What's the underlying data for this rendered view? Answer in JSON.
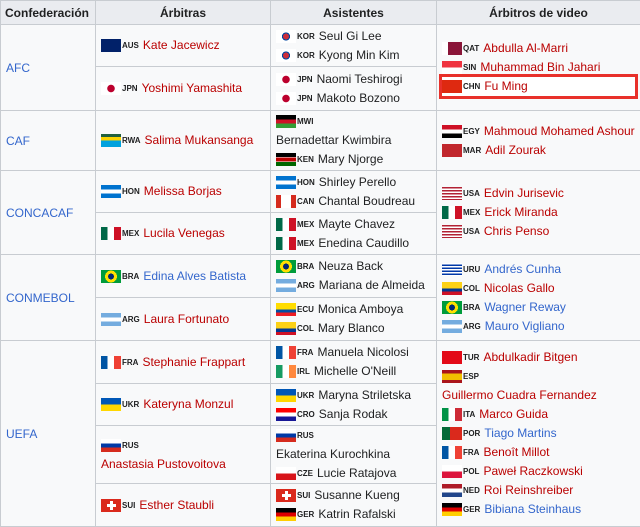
{
  "headers": [
    "Confederación",
    "Árbitras",
    "Asistentes",
    "Árbitros de video"
  ],
  "colors": {
    "red_link": "#ba0000",
    "blue_link": "#3366cc",
    "text": "#202122",
    "highlight": "#e8302a"
  },
  "confederations": [
    {
      "name": "AFC",
      "subrows": [
        {
          "referees": [
            {
              "code": "AUS",
              "name": "Kate Jacewicz",
              "link": "red"
            }
          ],
          "assistants": [
            {
              "code": "KOR",
              "name": "Seul Gi Lee"
            },
            {
              "code": "KOR",
              "name": "Kyong Min Kim"
            }
          ]
        },
        {
          "referees": [
            {
              "code": "JPN",
              "name": "Yoshimi Yamashita",
              "link": "red"
            }
          ],
          "assistants": [
            {
              "code": "JPN",
              "name": "Naomi Teshirogi"
            },
            {
              "code": "JPN",
              "name": "Makoto Bozono"
            }
          ]
        }
      ],
      "video": [
        {
          "code": "QAT",
          "name": "Abdulla Al-Marri",
          "link": "red"
        },
        {
          "code": "SIN",
          "name": "Muhammad Bin Jahari",
          "link": "red"
        },
        {
          "code": "CHN",
          "name": "Fu Ming",
          "link": "red",
          "highlighted": true
        }
      ]
    },
    {
      "name": "CAF",
      "subrows": [
        {
          "referees": [
            {
              "code": "RWA",
              "name": "Salima Mukansanga",
              "link": "red"
            }
          ],
          "assistants": [
            {
              "code": "MWI",
              "name": "Bernadettar Kwimbira"
            },
            {
              "code": "KEN",
              "name": "Mary Njorge"
            }
          ]
        }
      ],
      "video": [
        {
          "code": "EGY",
          "name": "Mahmoud Mohamed Ashour",
          "link": "red"
        },
        {
          "code": "MAR",
          "name": "Adil Zourak",
          "link": "red"
        }
      ]
    },
    {
      "name": "CONCACAF",
      "subrows": [
        {
          "referees": [
            {
              "code": "HON",
              "name": "Melissa Borjas",
              "link": "red"
            }
          ],
          "assistants": [
            {
              "code": "HON",
              "name": "Shirley Perello"
            },
            {
              "code": "CAN",
              "name": "Chantal Boudreau"
            }
          ]
        },
        {
          "referees": [
            {
              "code": "MEX",
              "name": "Lucila Venegas",
              "link": "red"
            }
          ],
          "assistants": [
            {
              "code": "MEX",
              "name": "Mayte Chavez"
            },
            {
              "code": "MEX",
              "name": "Enedina Caudillo"
            }
          ]
        }
      ],
      "video": [
        {
          "code": "USA",
          "name": "Edvin Jurisevic",
          "link": "red"
        },
        {
          "code": "MEX",
          "name": "Erick Miranda",
          "link": "red"
        },
        {
          "code": "USA",
          "name": "Chris Penso",
          "link": "red"
        }
      ]
    },
    {
      "name": "CONMEBOL",
      "subrows": [
        {
          "referees": [
            {
              "code": "BRA",
              "name": "Edina Alves Batista",
              "link": "blue"
            }
          ],
          "assistants": [
            {
              "code": "BRA",
              "name": "Neuza Back"
            },
            {
              "code": "ARG",
              "name": "Mariana de Almeida"
            }
          ]
        },
        {
          "referees": [
            {
              "code": "ARG",
              "name": "Laura Fortunato",
              "link": "red"
            }
          ],
          "assistants": [
            {
              "code": "ECU",
              "name": "Monica Amboya"
            },
            {
              "code": "COL",
              "name": "Mary Blanco"
            }
          ]
        }
      ],
      "video": [
        {
          "code": "URU",
          "name": "Andrés Cunha",
          "link": "blue"
        },
        {
          "code": "COL",
          "name": "Nicolas Gallo",
          "link": "red"
        },
        {
          "code": "BRA",
          "name": "Wagner Reway",
          "link": "blue"
        },
        {
          "code": "ARG",
          "name": "Mauro Vigliano",
          "link": "blue"
        }
      ]
    },
    {
      "name": "UEFA",
      "subrows": [
        {
          "referees": [
            {
              "code": "FRA",
              "name": "Stephanie Frappart",
              "link": "red"
            }
          ],
          "assistants": [
            {
              "code": "FRA",
              "name": "Manuela Nicolosi"
            },
            {
              "code": "IRL",
              "name": "Michelle O'Neill"
            }
          ]
        },
        {
          "referees": [
            {
              "code": "UKR",
              "name": "Kateryna Monzul",
              "link": "red"
            }
          ],
          "assistants": [
            {
              "code": "UKR",
              "name": "Maryna Striletska"
            },
            {
              "code": "CRO",
              "name": "Sanja Rodak"
            }
          ]
        },
        {
          "referees": [
            {
              "code": "RUS",
              "name": "Anastasia Pustovoitova",
              "link": "red"
            }
          ],
          "assistants": [
            {
              "code": "RUS",
              "name": "Ekaterina Kurochkina"
            },
            {
              "code": "CZE",
              "name": "Lucie Ratajova"
            }
          ]
        },
        {
          "referees": [
            {
              "code": "SUI",
              "name": "Esther Staubli",
              "link": "red"
            }
          ],
          "assistants": [
            {
              "code": "SUI",
              "name": "Susanne Kueng"
            },
            {
              "code": "GER",
              "name": "Katrin Rafalski"
            }
          ]
        }
      ],
      "video": [
        {
          "code": "TUR",
          "name": "Abdulkadir Bitgen",
          "link": "red"
        },
        {
          "code": "ESP",
          "name": "Guillermo Cuadra Fernandez",
          "link": "red"
        },
        {
          "code": "ITA",
          "name": "Marco Guida",
          "link": "red"
        },
        {
          "code": "POR",
          "name": "Tiago Martins",
          "link": "blue"
        },
        {
          "code": "FRA",
          "name": "Benoît Millot",
          "link": "red"
        },
        {
          "code": "POL",
          "name": "Paweł Raczkowski",
          "link": "red"
        },
        {
          "code": "NED",
          "name": "Roi Reinshreiber",
          "link": "red"
        },
        {
          "code": "GER",
          "name": "Bibiana Steinhaus",
          "link": "blue"
        }
      ]
    }
  ]
}
